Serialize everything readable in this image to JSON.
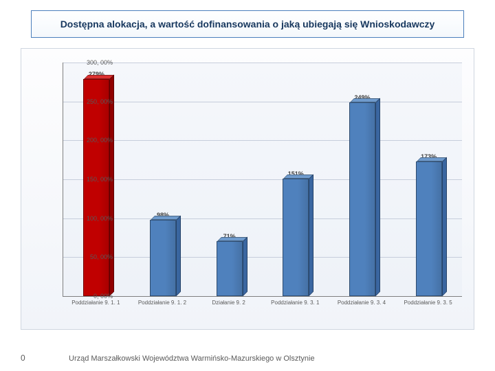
{
  "title": "Dostępna alokacja, a wartość dofinansowania o jaką ubiegają się Wnioskodawczy",
  "footer": {
    "zero": "0",
    "text": "Urząd Marszałkowski Województwa Warmińsko-Mazurskiego w Olsztynie"
  },
  "chart": {
    "type": "bar",
    "ylim": [
      0,
      300
    ],
    "ytick_step": 50,
    "ytick_format_suffix": ", 00%",
    "grid_color": "#c6cddb",
    "axis_color": "#7f7f7f",
    "background_top": "#f5f7fb",
    "background_bottom": "#eef2f8",
    "yticks": [
      {
        "v": 0,
        "label": "0, 00%"
      },
      {
        "v": 50,
        "label": "50, 00%"
      },
      {
        "v": 100,
        "label": "100, 00%"
      },
      {
        "v": 150,
        "label": "150, 00%"
      },
      {
        "v": 200,
        "label": "200, 00%"
      },
      {
        "v": 250,
        "label": "250, 00%"
      },
      {
        "v": 300,
        "label": "300, 00%"
      }
    ],
    "default_color": {
      "front": "#4f81bd",
      "top": "#6f9bcd",
      "side": "#3a66a0"
    },
    "bars": [
      {
        "category": "Poddziałanie 9. 1. 1",
        "value": 279,
        "label": "279%",
        "color": {
          "front": "#c00000",
          "top": "#da3030",
          "side": "#900000"
        }
      },
      {
        "category": "Poddziałanie 9. 1. 2",
        "value": 98,
        "label": "98%"
      },
      {
        "category": "Działanie 9. 2",
        "value": 71,
        "label": "71%"
      },
      {
        "category": "Poddziałanie 9. 3. 1",
        "value": 151,
        "label": "151%"
      },
      {
        "category": "Poddziałanie 9. 3. 4",
        "value": 249,
        "label": "249%"
      },
      {
        "category": "Poddziałanie 9. 3. 5",
        "value": 173,
        "label": "173%"
      }
    ]
  }
}
